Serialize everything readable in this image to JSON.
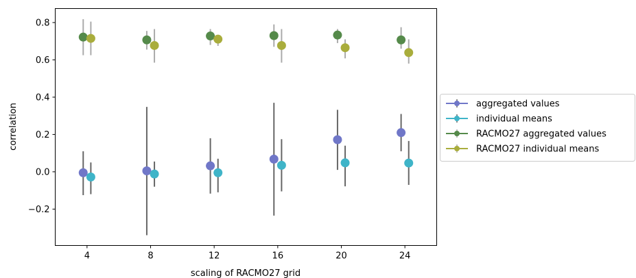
{
  "chart_data": {
    "type": "scatter",
    "title": "",
    "xlabel": "scaling of RACMO27 grid",
    "ylabel": "correlation",
    "categories": [
      "4",
      "8",
      "12",
      "16",
      "20",
      "24"
    ],
    "yticks": [
      "−0.2",
      "0.0",
      "0.2",
      "0.4",
      "0.6",
      "0.8"
    ],
    "ytick_values": [
      -0.2,
      0.0,
      0.2,
      0.4,
      0.6,
      0.8
    ],
    "ylim": [
      -0.395,
      0.875
    ],
    "grid": false,
    "legend_position": "outside-right",
    "series": [
      {
        "name": "aggregated values",
        "color": "#7077c8",
        "offset": -0.06,
        "values": [
          -0.005,
          0.005,
          0.032,
          0.068,
          0.172,
          0.21
        ],
        "err_low": [
          -0.125,
          -0.34,
          -0.117,
          -0.235,
          0.01,
          0.11
        ],
        "err_high": [
          0.11,
          0.348,
          0.18,
          0.37,
          0.332,
          0.31
        ]
      },
      {
        "name": "individual means",
        "color": "#3fb4c8",
        "offset": 0.06,
        "values": [
          -0.028,
          -0.012,
          -0.005,
          0.035,
          0.048,
          0.047
        ],
        "err_low": [
          -0.12,
          -0.08,
          -0.11,
          -0.105,
          -0.078,
          -0.07
        ],
        "err_high": [
          0.05,
          0.055,
          0.07,
          0.175,
          0.14,
          0.165
        ]
      },
      {
        "name": "RACMO27 aggregated values",
        "color": "#558a4a",
        "offset": -0.06,
        "values": [
          0.722,
          0.707,
          0.728,
          0.73,
          0.733,
          0.707
        ],
        "err_low": [
          0.625,
          0.655,
          0.68,
          0.67,
          0.69,
          0.66
        ],
        "err_high": [
          0.818,
          0.755,
          0.765,
          0.79,
          0.765,
          0.775
        ]
      },
      {
        "name": "RACMO27 individual means",
        "color": "#a9ad3c",
        "offset": 0.06,
        "values": [
          0.715,
          0.677,
          0.711,
          0.677,
          0.665,
          0.639
        ],
        "err_low": [
          0.625,
          0.585,
          0.675,
          0.585,
          0.608,
          0.58
        ],
        "err_high": [
          0.805,
          0.765,
          0.73,
          0.765,
          0.71,
          0.71
        ]
      }
    ],
    "errorbar_color": "#666666",
    "errorbar_color_upper": "#aaaaaa"
  }
}
